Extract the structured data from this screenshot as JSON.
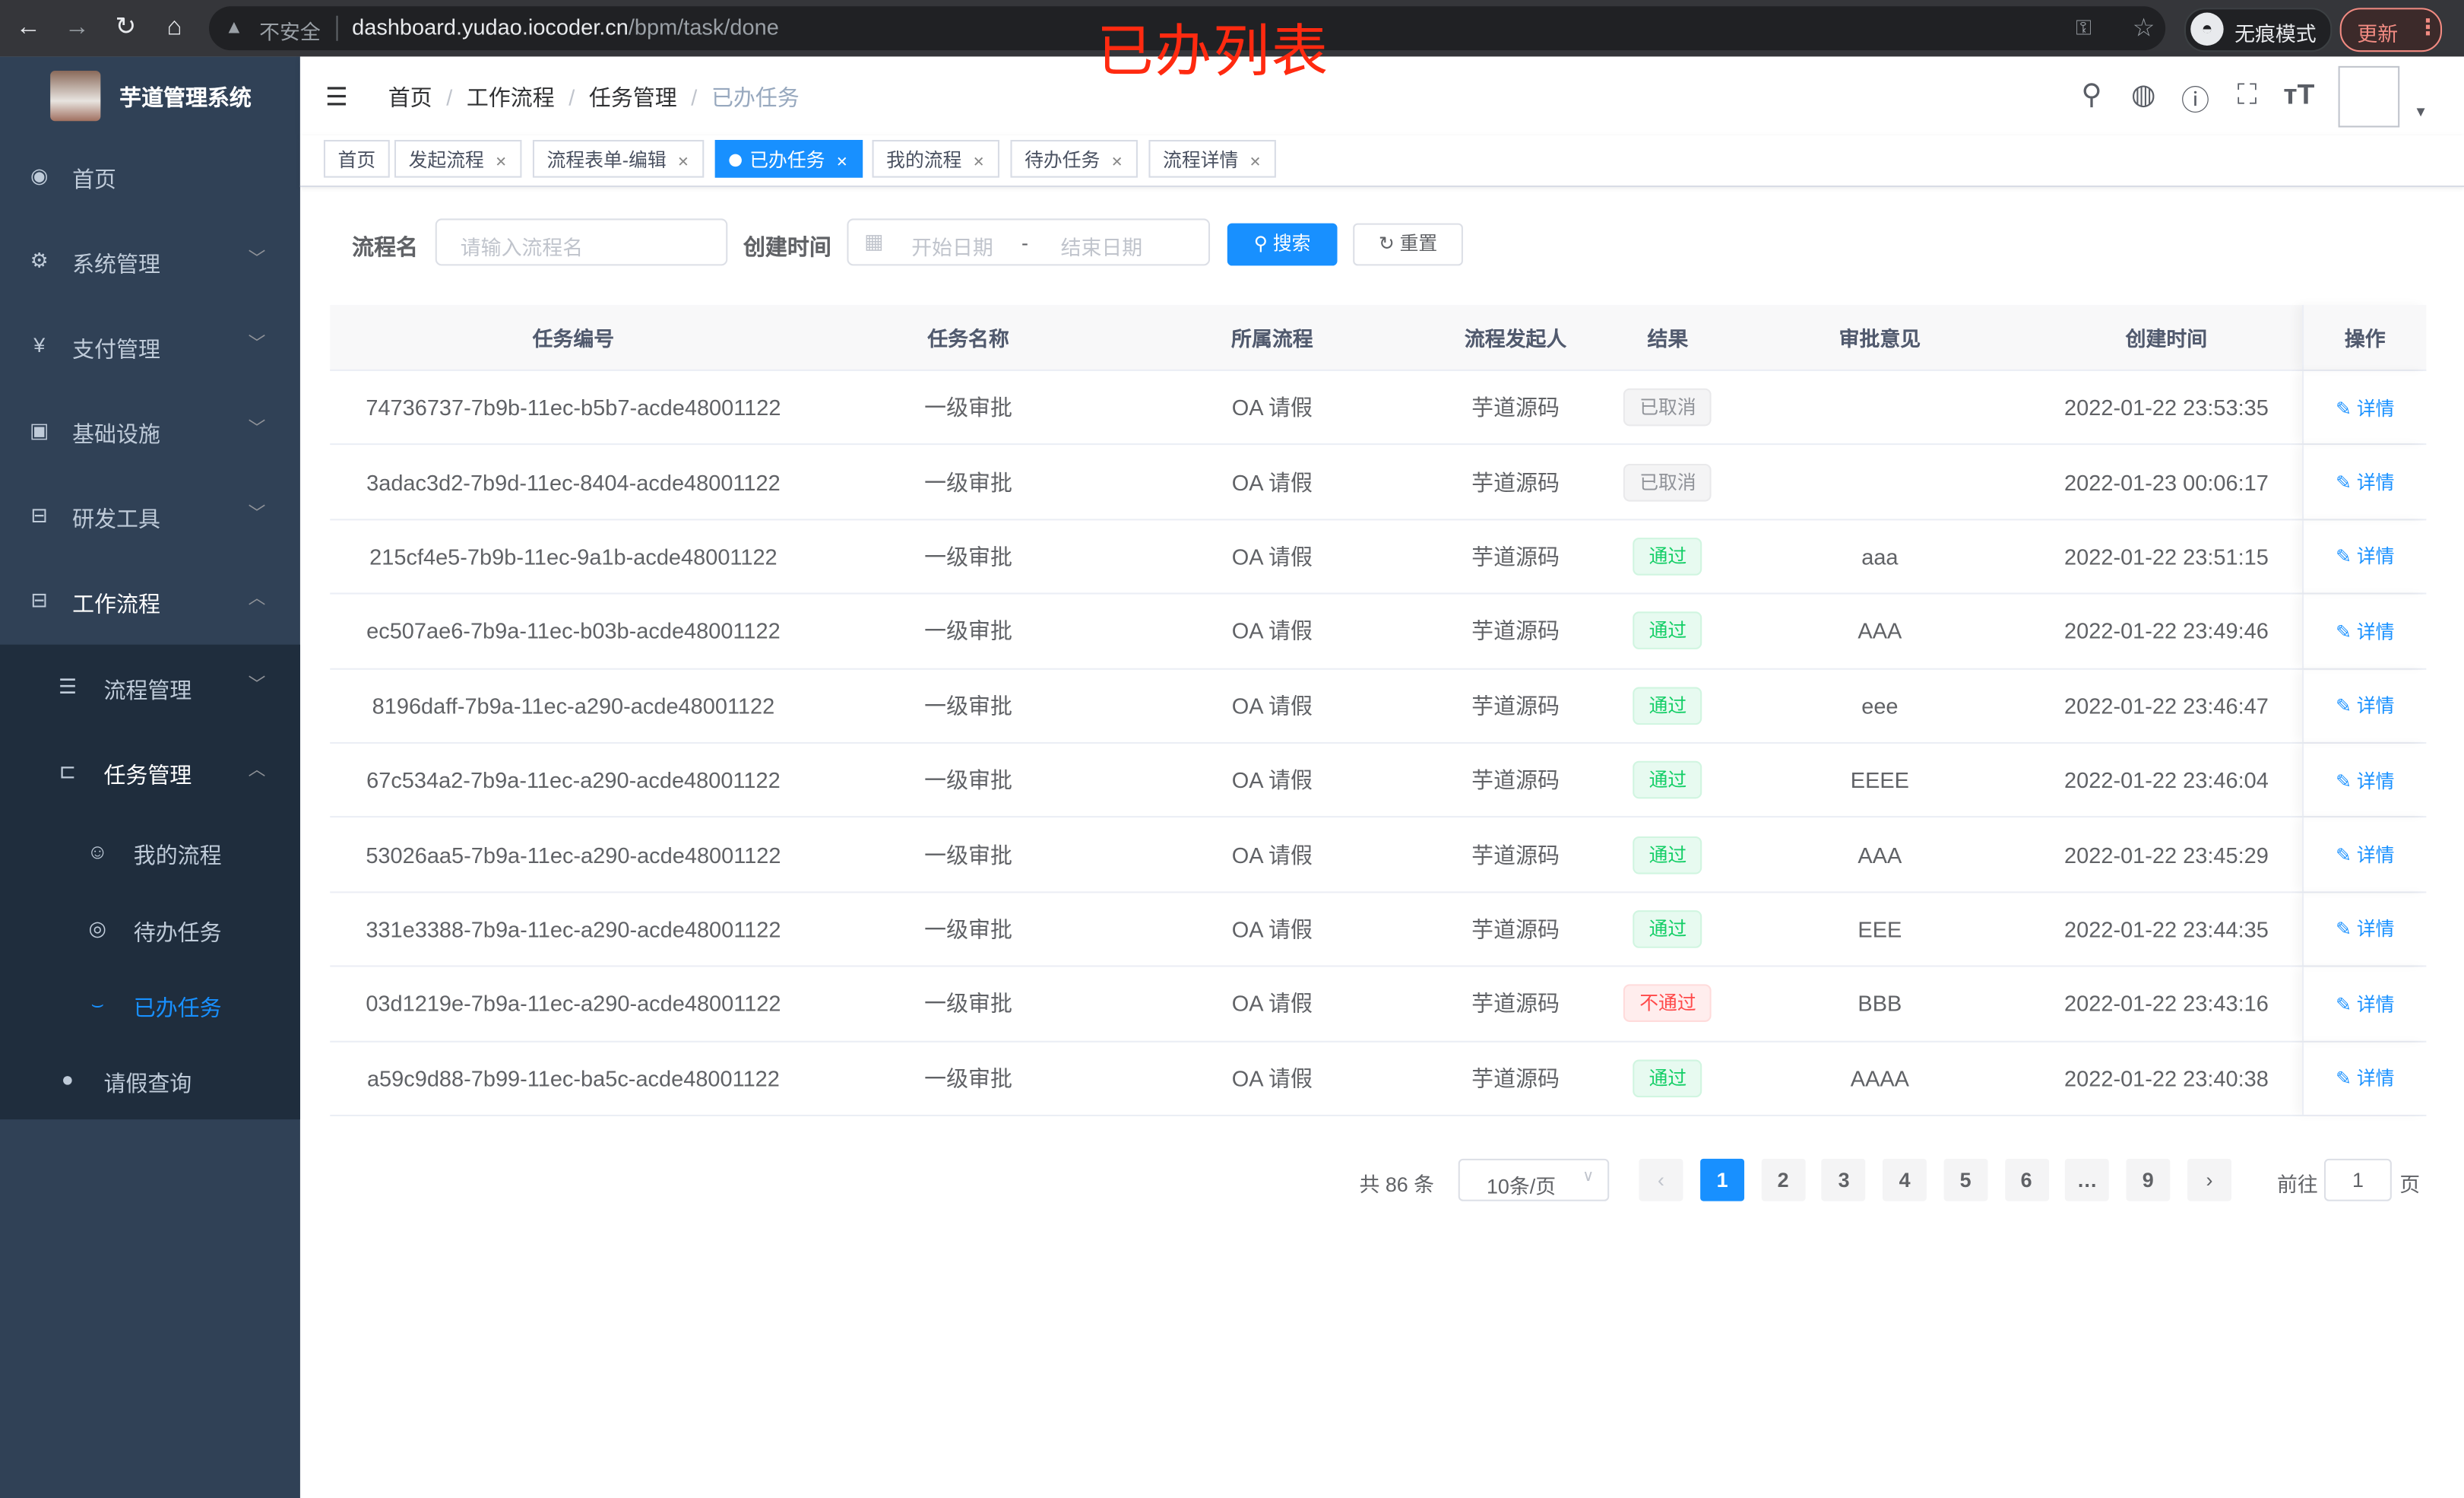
{
  "browser": {
    "insecure_label": "不安全",
    "url_host": "dashboard.yudao.iocoder.cn",
    "url_path": "/bpm/task/done",
    "incognito_label": "无痕模式",
    "update_label": "更新"
  },
  "overlay_title": "已办列表",
  "sidebar": {
    "brand": "芋道管理系统",
    "items": [
      {
        "label": "首页"
      },
      {
        "label": "系统管理"
      },
      {
        "label": "支付管理"
      },
      {
        "label": "基础设施"
      },
      {
        "label": "研发工具"
      },
      {
        "label": "工作流程"
      },
      {
        "label": "流程管理"
      },
      {
        "label": "任务管理"
      },
      {
        "label": "我的流程"
      },
      {
        "label": "待办任务"
      },
      {
        "label": "已办任务"
      },
      {
        "label": "请假查询"
      }
    ],
    "active": "已办任务"
  },
  "breadcrumb": [
    "首页",
    "工作流程",
    "任务管理",
    "已办任务"
  ],
  "tags": [
    {
      "label": "首页"
    },
    {
      "label": "发起流程"
    },
    {
      "label": "流程表单-编辑"
    },
    {
      "label": "已办任务",
      "active": true
    },
    {
      "label": "我的流程"
    },
    {
      "label": "待办任务"
    },
    {
      "label": "流程详情"
    }
  ],
  "search": {
    "name_label": "流程名",
    "name_placeholder": "请输入流程名",
    "time_label": "创建时间",
    "start_placeholder": "开始日期",
    "range_sep": "-",
    "end_placeholder": "结束日期",
    "search_btn": "搜索",
    "reset_btn": "重置"
  },
  "table": {
    "columns": [
      "任务编号",
      "任务名称",
      "所属流程",
      "流程发起人",
      "结果",
      "审批意见",
      "创建时间",
      "操作"
    ],
    "rows": [
      {
        "id": "74736737-7b9b-11ec-b5b7-acde48001122",
        "name": "一级审批",
        "process": "OA 请假",
        "starter": "芋道源码",
        "result": "已取消",
        "status": "cancel",
        "comment": "",
        "time": "2022-01-22 23:53:35",
        "action": "详情"
      },
      {
        "id": "3adac3d2-7b9d-11ec-8404-acde48001122",
        "name": "一级审批",
        "process": "OA 请假",
        "starter": "芋道源码",
        "result": "已取消",
        "status": "cancel",
        "comment": "",
        "time": "2022-01-23 00:06:17",
        "action": "详情"
      },
      {
        "id": "215cf4e5-7b9b-11ec-9a1b-acde48001122",
        "name": "一级审批",
        "process": "OA 请假",
        "starter": "芋道源码",
        "result": "通过",
        "status": "pass",
        "comment": "aaa",
        "time": "2022-01-22 23:51:15",
        "action": "详情"
      },
      {
        "id": "ec507ae6-7b9a-11ec-b03b-acde48001122",
        "name": "一级审批",
        "process": "OA 请假",
        "starter": "芋道源码",
        "result": "通过",
        "status": "pass",
        "comment": "AAA",
        "time": "2022-01-22 23:49:46",
        "action": "详情"
      },
      {
        "id": "8196daff-7b9a-11ec-a290-acde48001122",
        "name": "一级审批",
        "process": "OA 请假",
        "starter": "芋道源码",
        "result": "通过",
        "status": "pass",
        "comment": "eee",
        "time": "2022-01-22 23:46:47",
        "action": "详情"
      },
      {
        "id": "67c534a2-7b9a-11ec-a290-acde48001122",
        "name": "一级审批",
        "process": "OA 请假",
        "starter": "芋道源码",
        "result": "通过",
        "status": "pass",
        "comment": "EEEE",
        "time": "2022-01-22 23:46:04",
        "action": "详情"
      },
      {
        "id": "53026aa5-7b9a-11ec-a290-acde48001122",
        "name": "一级审批",
        "process": "OA 请假",
        "starter": "芋道源码",
        "result": "通过",
        "status": "pass",
        "comment": "AAA",
        "time": "2022-01-22 23:45:29",
        "action": "详情"
      },
      {
        "id": "331e3388-7b9a-11ec-a290-acde48001122",
        "name": "一级审批",
        "process": "OA 请假",
        "starter": "芋道源码",
        "result": "通过",
        "status": "pass",
        "comment": "EEE",
        "time": "2022-01-22 23:44:35",
        "action": "详情"
      },
      {
        "id": "03d1219e-7b9a-11ec-a290-acde48001122",
        "name": "一级审批",
        "process": "OA 请假",
        "starter": "芋道源码",
        "result": "不通过",
        "status": "fail",
        "comment": "BBB",
        "time": "2022-01-22 23:43:16",
        "action": "详情"
      },
      {
        "id": "a59c9d88-7b99-11ec-ba5c-acde48001122",
        "name": "一级审批",
        "process": "OA 请假",
        "starter": "芋道源码",
        "result": "通过",
        "status": "pass",
        "comment": "AAAA",
        "time": "2022-01-22 23:40:38",
        "action": "详情"
      }
    ]
  },
  "status_colors": {
    "cancel": {
      "bg": "#f4f4f5",
      "border": "#e9e9eb",
      "text": "#909399"
    },
    "pass": {
      "bg": "#e7faf0",
      "border": "#d0f5e0",
      "text": "#13ce66"
    },
    "fail": {
      "bg": "#ffeded",
      "border": "#ffdbdb",
      "text": "#ff4949"
    }
  },
  "pagination": {
    "total_label": "共 86 条",
    "page_size": "10条/页",
    "pages": [
      "1",
      "2",
      "3",
      "4",
      "5",
      "6",
      "…",
      "9"
    ],
    "current": "1",
    "goto_label": "前往",
    "goto_value": "1",
    "goto_suffix": "页"
  },
  "colors": {
    "accent": "#1890ff",
    "sidebar_bg": "#304156",
    "submenu_bg": "#1f2d3d"
  }
}
